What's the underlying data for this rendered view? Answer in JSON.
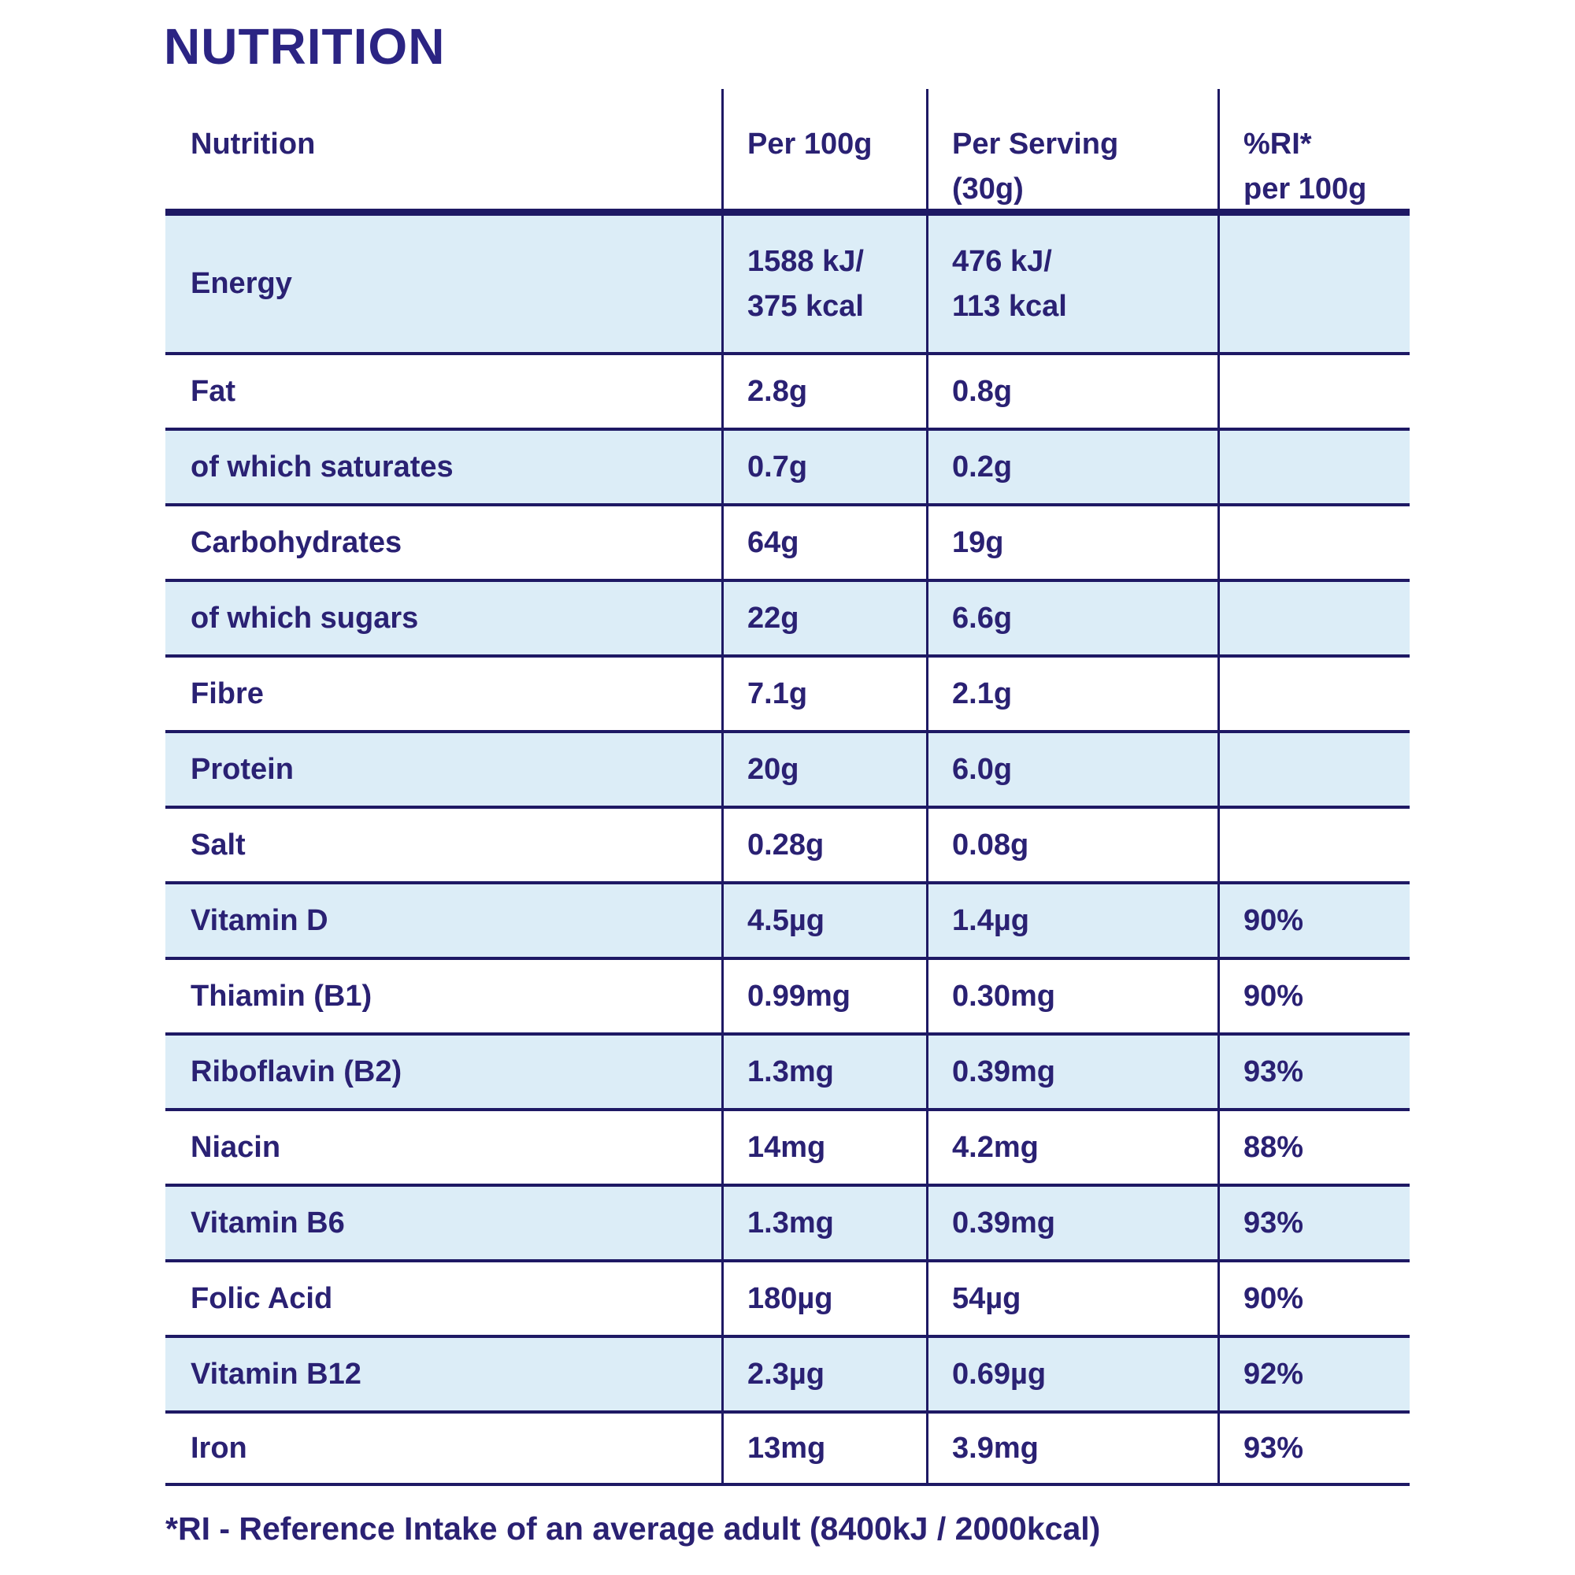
{
  "title": "NUTRITION",
  "colors": {
    "text_navy": "#2a2173",
    "border_navy": "#1e1964",
    "row_highlight_blue": "#dcedf7",
    "background": "#ffffff"
  },
  "table": {
    "columns": [
      "Nutrition",
      "Per 100g",
      "Per Serving\n(30g)",
      "%RI*\nper 100g"
    ],
    "rows": [
      {
        "label": "Energy",
        "per_100g": "1588 kJ/\n375 kcal",
        "per_serving": "476 kJ/\n113 kcal",
        "ri_per_100g": ""
      },
      {
        "label": "Fat",
        "per_100g": "2.8g",
        "per_serving": "0.8g",
        "ri_per_100g": ""
      },
      {
        "label": "of which saturates",
        "per_100g": "0.7g",
        "per_serving": "0.2g",
        "ri_per_100g": ""
      },
      {
        "label": "Carbohydrates",
        "per_100g": "64g",
        "per_serving": "19g",
        "ri_per_100g": ""
      },
      {
        "label": "of which sugars",
        "per_100g": "22g",
        "per_serving": "6.6g",
        "ri_per_100g": ""
      },
      {
        "label": "Fibre",
        "per_100g": "7.1g",
        "per_serving": "2.1g",
        "ri_per_100g": ""
      },
      {
        "label": "Protein",
        "per_100g": "20g",
        "per_serving": "6.0g",
        "ri_per_100g": ""
      },
      {
        "label": "Salt",
        "per_100g": "0.28g",
        "per_serving": "0.08g",
        "ri_per_100g": ""
      },
      {
        "label": "Vitamin D",
        "per_100g": "4.5µg",
        "per_serving": "1.4µg",
        "ri_per_100g": "90%"
      },
      {
        "label": "Thiamin (B1)",
        "per_100g": "0.99mg",
        "per_serving": "0.30mg",
        "ri_per_100g": "90%"
      },
      {
        "label": "Riboflavin (B2)",
        "per_100g": "1.3mg",
        "per_serving": "0.39mg",
        "ri_per_100g": "93%"
      },
      {
        "label": "Niacin",
        "per_100g": "14mg",
        "per_serving": "4.2mg",
        "ri_per_100g": "88%"
      },
      {
        "label": "Vitamin B6",
        "per_100g": "1.3mg",
        "per_serving": "0.39mg",
        "ri_per_100g": "93%"
      },
      {
        "label": "Folic Acid",
        "per_100g": "180µg",
        "per_serving": "54µg",
        "ri_per_100g": "90%"
      },
      {
        "label": "Vitamin B12",
        "per_100g": "2.3µg",
        "per_serving": "0.69µg",
        "ri_per_100g": "92%"
      },
      {
        "label": "Iron",
        "per_100g": "13mg",
        "per_serving": "3.9mg",
        "ri_per_100g": "93%"
      }
    ]
  },
  "footnote": "*RI - Reference Intake of an average adult (8400kJ / 2000kcal)"
}
